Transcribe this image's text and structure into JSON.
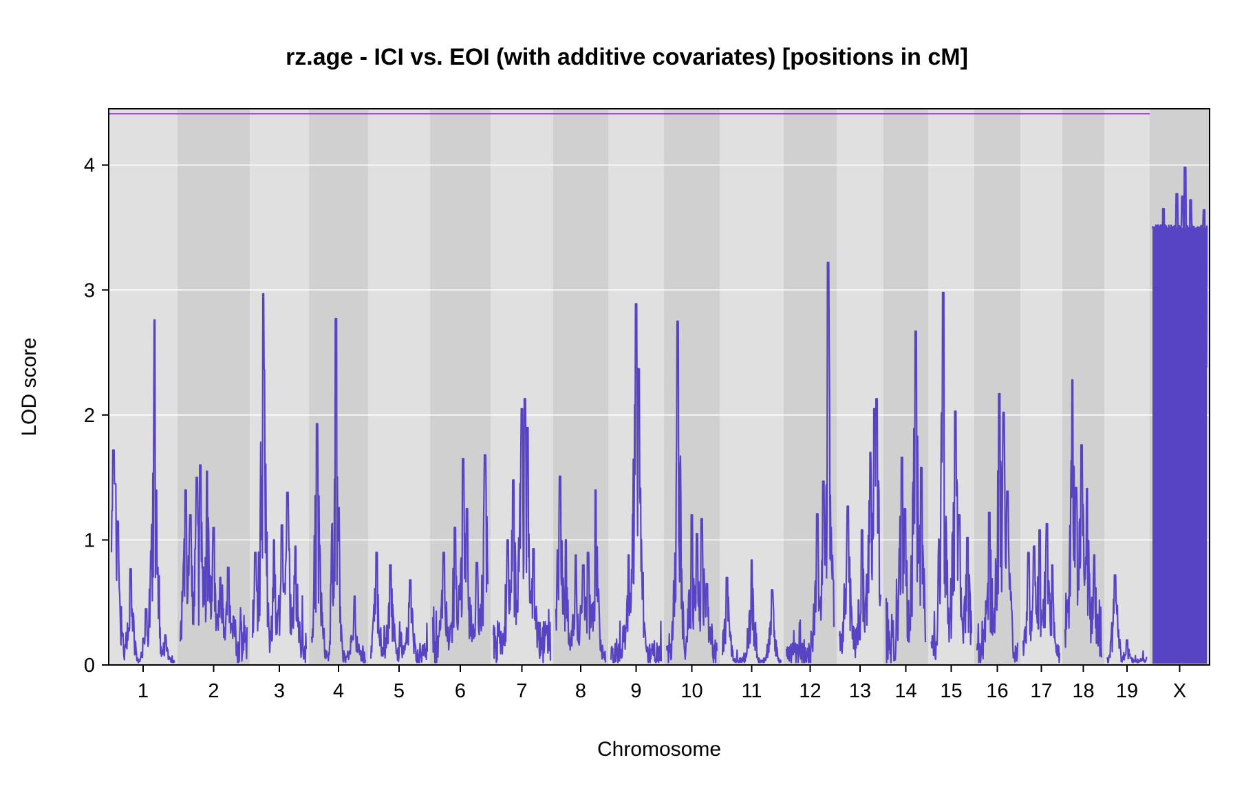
{
  "chart_data": {
    "type": "line",
    "title": "rz.age - ICI vs. EOI (with additive covariates) [positions in cM]",
    "xlabel": "Chromosome",
    "ylabel": "LOD score",
    "ylim": [
      0,
      4.45
    ],
    "yticks": [
      0,
      1,
      2,
      3,
      4
    ],
    "grid": true,
    "threshold": 4.41,
    "colors": {
      "line": "#5744c4",
      "threshold": "#9b30d9",
      "band_light": "#e0e0e0",
      "band_dark": "#d0d0d0",
      "grid": "#ffffff"
    },
    "chromosomes": [
      {
        "name": "1",
        "base": 0.05,
        "peaks": [
          [
            0.03,
            1.72
          ],
          [
            0.06,
            1.45
          ],
          [
            0.1,
            1.15
          ],
          [
            0.3,
            0.77
          ],
          [
            0.55,
            0.45
          ],
          [
            0.68,
            2.76
          ],
          [
            0.85,
            0.24
          ]
        ]
      },
      {
        "name": "2",
        "base": 0.35,
        "peaks": [
          [
            0.08,
            1.4
          ],
          [
            0.15,
            1.2
          ],
          [
            0.25,
            1.5
          ],
          [
            0.3,
            1.6
          ],
          [
            0.4,
            1.55
          ],
          [
            0.5,
            1.1
          ],
          [
            0.6,
            0.7
          ],
          [
            0.72,
            0.78
          ]
        ]
      },
      {
        "name": "3",
        "base": 0.25,
        "peaks": [
          [
            0.05,
            0.9
          ],
          [
            0.2,
            2.97
          ],
          [
            0.4,
            1.0
          ],
          [
            0.55,
            1.12
          ],
          [
            0.65,
            1.38
          ],
          [
            0.8,
            0.95
          ]
        ]
      },
      {
        "name": "4",
        "base": 0.1,
        "peaks": [
          [
            0.1,
            1.93
          ],
          [
            0.15,
            0.87
          ],
          [
            0.45,
            2.77
          ],
          [
            0.8,
            0.55
          ]
        ]
      },
      {
        "name": "5",
        "base": 0.15,
        "peaks": [
          [
            0.1,
            0.9
          ],
          [
            0.35,
            0.8
          ],
          [
            0.7,
            0.68
          ]
        ]
      },
      {
        "name": "6",
        "base": 0.2,
        "peaks": [
          [
            0.2,
            0.9
          ],
          [
            0.4,
            1.1
          ],
          [
            0.55,
            1.65
          ],
          [
            0.62,
            1.25
          ],
          [
            0.8,
            0.82
          ],
          [
            0.95,
            1.68
          ]
        ]
      },
      {
        "name": "7",
        "base": 0.3,
        "peaks": [
          [
            0.25,
            1.0
          ],
          [
            0.35,
            1.48
          ],
          [
            0.5,
            2.05
          ],
          [
            0.55,
            2.13
          ],
          [
            0.6,
            1.9
          ],
          [
            0.7,
            0.93
          ]
        ]
      },
      {
        "name": "8",
        "base": 0.1,
        "peaks": [
          [
            0.08,
            1.51
          ],
          [
            0.2,
            1.0
          ],
          [
            0.4,
            0.88
          ],
          [
            0.55,
            0.8
          ],
          [
            0.65,
            0.9
          ],
          [
            0.8,
            1.4
          ]
        ]
      },
      {
        "name": "9",
        "base": 0.15,
        "peaks": [
          [
            0.35,
            0.88
          ],
          [
            0.5,
            2.89
          ],
          [
            0.55,
            2.37
          ],
          [
            0.6,
            0.75
          ]
        ]
      },
      {
        "name": "10",
        "base": 0.15,
        "peaks": [
          [
            0.22,
            2.75
          ],
          [
            0.5,
            1.2
          ],
          [
            0.6,
            1.05
          ],
          [
            0.7,
            1.17
          ],
          [
            0.8,
            0.65
          ]
        ]
      },
      {
        "name": "11",
        "base": 0.05,
        "peaks": [
          [
            0.08,
            0.7
          ],
          [
            0.5,
            0.84
          ],
          [
            0.85,
            0.6
          ]
        ]
      },
      {
        "name": "12",
        "base": 0.15,
        "peaks": [
          [
            0.65,
            1.21
          ],
          [
            0.78,
            1.47
          ],
          [
            0.88,
            3.22
          ]
        ]
      },
      {
        "name": "13",
        "base": 0.3,
        "peaks": [
          [
            0.2,
            1.27
          ],
          [
            0.55,
            1.08
          ],
          [
            0.75,
            1.7
          ],
          [
            0.85,
            2.05
          ],
          [
            0.9,
            2.13
          ]
        ]
      },
      {
        "name": "14",
        "base": 0.3,
        "peaks": [
          [
            0.4,
            1.66
          ],
          [
            0.48,
            1.25
          ],
          [
            0.75,
            2.67
          ],
          [
            0.9,
            1.58
          ]
        ]
      },
      {
        "name": "15",
        "base": 0.2,
        "peaks": [
          [
            0.3,
            2.98
          ],
          [
            0.6,
            2.03
          ],
          [
            0.7,
            1.2
          ],
          [
            0.9,
            1.02
          ]
        ]
      },
      {
        "name": "16",
        "base": 0.15,
        "peaks": [
          [
            0.3,
            1.22
          ],
          [
            0.55,
            2.17
          ],
          [
            0.65,
            2.02
          ],
          [
            0.75,
            1.39
          ]
        ]
      },
      {
        "name": "17",
        "base": 0.15,
        "peaks": [
          [
            0.15,
            0.9
          ],
          [
            0.3,
            0.95
          ],
          [
            0.45,
            1.08
          ],
          [
            0.65,
            1.13
          ],
          [
            0.8,
            0.8
          ]
        ]
      },
      {
        "name": "18",
        "base": 0.3,
        "peaks": [
          [
            0.2,
            2.28
          ],
          [
            0.3,
            1.42
          ],
          [
            0.45,
            1.76
          ],
          [
            0.6,
            1.41
          ],
          [
            0.8,
            0.88
          ]
        ]
      },
      {
        "name": "19",
        "base": 0.05,
        "peaks": [
          [
            0.2,
            0.72
          ],
          [
            0.5,
            0.2
          ]
        ]
      },
      {
        "name": "X",
        "base": 3.5,
        "peaks": [
          [
            0.2,
            3.65
          ],
          [
            0.45,
            3.77
          ],
          [
            0.55,
            3.75
          ],
          [
            0.6,
            3.98
          ],
          [
            0.7,
            3.72
          ],
          [
            0.95,
            3.64
          ]
        ]
      }
    ]
  }
}
